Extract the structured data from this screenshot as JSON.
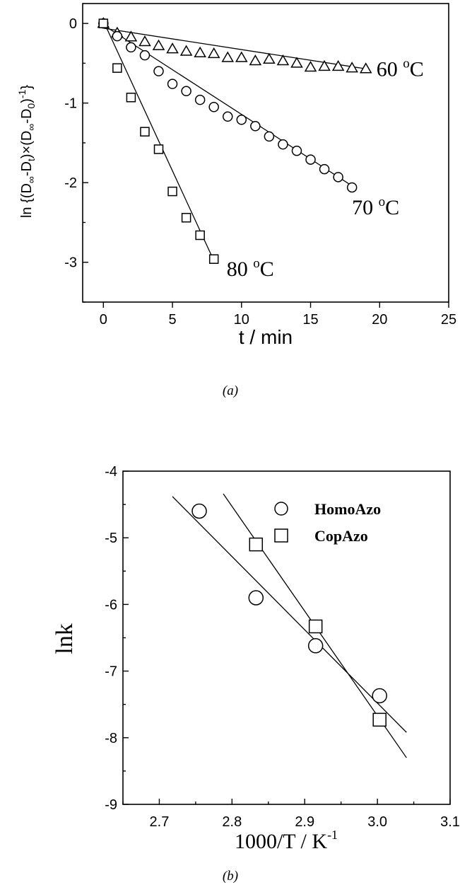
{
  "chart_data": [
    {
      "type": "scatter",
      "panel_label": "(a)",
      "xlabel": "t / min",
      "ylabel": "ln {(D∞-Dt)×(D∞-D0)-1}",
      "xlim": [
        -1.5,
        25
      ],
      "ylim": [
        -3.5,
        0.25
      ],
      "xticks": [
        0,
        5,
        10,
        15,
        20,
        25
      ],
      "yticks": [
        0,
        -1,
        -2,
        -3
      ],
      "grid": false,
      "series": [
        {
          "name": "60 °C",
          "marker": "triangle",
          "x": [
            0,
            1,
            2,
            3,
            4,
            5,
            6,
            7,
            8,
            9,
            10,
            11,
            12,
            13,
            14,
            15,
            16,
            17,
            18,
            19
          ],
          "y": [
            0,
            -0.12,
            -0.17,
            -0.23,
            -0.28,
            -0.32,
            -0.35,
            -0.37,
            -0.38,
            -0.43,
            -0.43,
            -0.47,
            -0.45,
            -0.47,
            -0.5,
            -0.55,
            -0.54,
            -0.54,
            -0.56,
            -0.57
          ],
          "fit": [
            [
              0,
              -0.06
            ],
            [
              19,
              -0.57
            ]
          ]
        },
        {
          "name": "70 °C",
          "marker": "circle",
          "x": [
            0,
            1,
            2,
            3,
            4,
            5,
            6,
            7,
            8,
            9,
            10,
            11,
            12,
            13,
            14,
            15,
            16,
            17,
            18
          ],
          "y": [
            0,
            -0.16,
            -0.3,
            -0.4,
            -0.6,
            -0.76,
            -0.85,
            -0.96,
            -1.05,
            -1.17,
            -1.21,
            -1.29,
            -1.42,
            -1.52,
            -1.6,
            -1.71,
            -1.83,
            -1.93,
            -2.06
          ],
          "fit": [
            [
              0,
              -0.02
            ],
            [
              18,
              -2.04
            ]
          ]
        },
        {
          "name": "80 °C",
          "marker": "square",
          "x": [
            0,
            1,
            2,
            3,
            4,
            5,
            6,
            7,
            8
          ],
          "y": [
            0,
            -0.56,
            -0.93,
            -1.36,
            -1.58,
            -2.11,
            -2.44,
            -2.66,
            -2.96
          ],
          "fit": [
            [
              0,
              0.03
            ],
            [
              8,
              -2.98
            ]
          ]
        }
      ]
    },
    {
      "type": "scatter",
      "panel_label": "(b)",
      "xlabel": "1000/T / K-1",
      "ylabel": "lnk",
      "xlim": [
        2.65,
        3.1
      ],
      "ylim": [
        -9,
        -4
      ],
      "xticks": [
        2.7,
        2.8,
        2.9,
        3.0,
        3.1
      ],
      "yticks": [
        -4,
        -5,
        -6,
        -7,
        -8,
        -9
      ],
      "grid": false,
      "legend_position": "top-right",
      "series": [
        {
          "name": "HomoAzo",
          "marker": "circle",
          "x": [
            2.755,
            2.833,
            2.915,
            3.003
          ],
          "y": [
            -4.6,
            -5.9,
            -6.62,
            -7.37
          ],
          "fit": [
            [
              2.718,
              -4.38
            ],
            [
              3.04,
              -7.92
            ]
          ]
        },
        {
          "name": "CopAzo",
          "marker": "square",
          "x": [
            2.833,
            2.915,
            3.003
          ],
          "y": [
            -5.1,
            -6.33,
            -7.73
          ],
          "fit": [
            [
              2.788,
              -4.34
            ],
            [
              3.04,
              -8.3
            ]
          ]
        }
      ]
    }
  ]
}
